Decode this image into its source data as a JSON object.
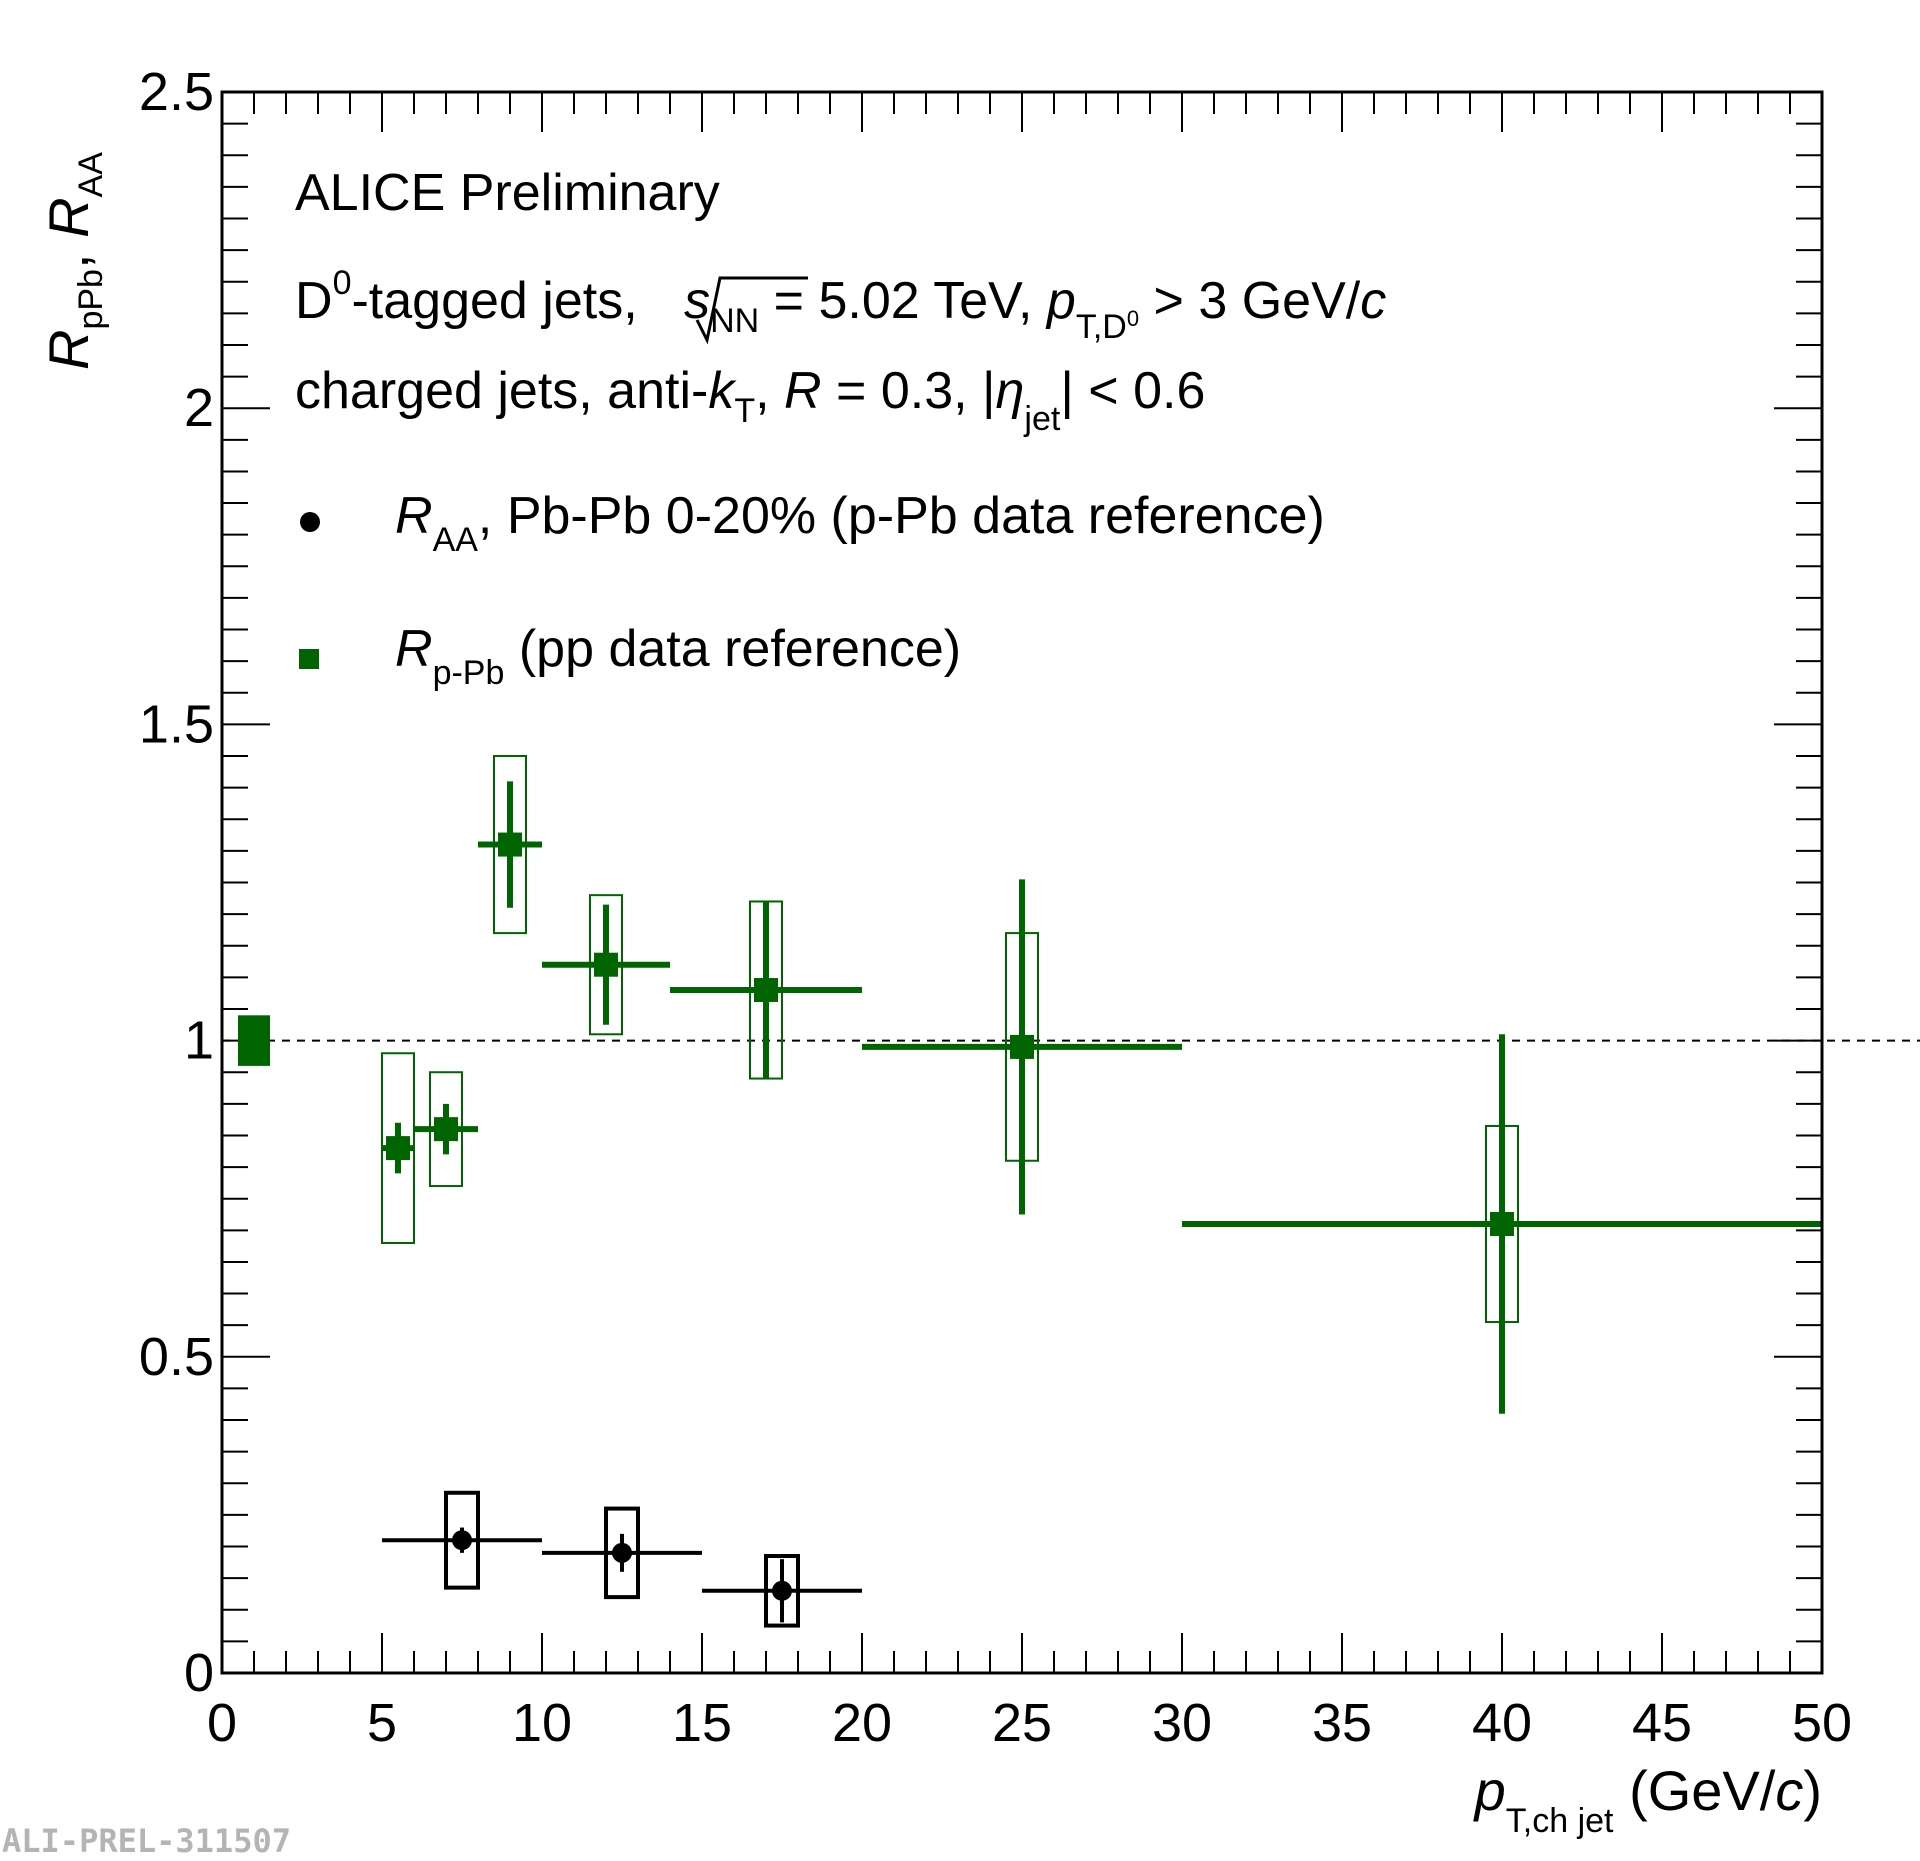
{
  "chart_data": {
    "type": "scatter",
    "title": "",
    "xlim": [
      0,
      50
    ],
    "ylim": [
      0,
      2.5
    ],
    "x_major_ticks": [
      0,
      5,
      10,
      15,
      20,
      25,
      30,
      35,
      40,
      45,
      50
    ],
    "y_major_ticks": [
      0,
      0.5,
      1,
      1.5,
      2,
      2.5
    ],
    "x_tick_labels": [
      "0",
      "5",
      "10",
      "15",
      "20",
      "25",
      "30",
      "35",
      "40",
      "45",
      "50"
    ],
    "y_tick_labels": [
      "0",
      "0.5",
      "1",
      "1.5",
      "2",
      "2.5"
    ],
    "reference_line": 1.0,
    "global_uncertainty": {
      "x": 1.0,
      "y": 1.0,
      "dx": 0.5,
      "dy": 0.04,
      "color": "#006400"
    },
    "xlabel": {
      "main": "p",
      "sub": "T,ch jet",
      "suffix": " (GeV/",
      "italic": "c",
      "close": ")"
    },
    "ylabel": {
      "r1": "R",
      "s1": "pPb",
      "sep": ", ",
      "r2": "R",
      "s2": "AA"
    },
    "annotations": {
      "experiment": "ALICE Preliminary",
      "line1": {
        "a": "D",
        "a_sup": "0",
        "b": "-tagged jets, ",
        "s": "s",
        "s_sub": "NN",
        "c": " = 5.02 TeV, ",
        "p": "p",
        "p_sub": "T,D",
        "p_sup": "0",
        "d": " > 3 GeV/",
        "c_it": "c"
      },
      "line2": {
        "a": "charged jets, anti-",
        "k": "k",
        "k_sub": "T",
        "b": ", ",
        "R": "R",
        "c": " = 0.3, |",
        "eta": "η",
        "eta_sub": "jet",
        "d": "| < 0.6"
      }
    },
    "legend_position": "top-left",
    "series": [
      {
        "name": "R_AA, Pb-Pb 0-20% (p-Pb data reference)",
        "legend": {
          "r": "R",
          "sub": "AA",
          "rest": ", Pb-Pb 0-20% (p-Pb data reference)"
        },
        "marker": "circle",
        "color": "#000000",
        "points": [
          {
            "x": 7.5,
            "xlo": 5,
            "xhi": 10,
            "y": 0.21,
            "stat": 0.02,
            "syst": 0.075,
            "bw": 0.5
          },
          {
            "x": 12.5,
            "xlo": 10,
            "xhi": 15,
            "y": 0.19,
            "stat": 0.03,
            "syst": 0.07,
            "bw": 0.5
          },
          {
            "x": 17.5,
            "xlo": 15,
            "xhi": 20,
            "y": 0.13,
            "stat": 0.05,
            "syst": 0.055,
            "bw": 0.5
          }
        ]
      },
      {
        "name": "R_p-Pb (pp data reference)",
        "legend": {
          "r": "R",
          "sub": "p-Pb",
          "rest": " (pp data reference)"
        },
        "marker": "square",
        "color": "#006400",
        "points": [
          {
            "x": 5.5,
            "xlo": 5,
            "xhi": 6,
            "y": 0.83,
            "stat": 0.04,
            "syst": 0.15,
            "bw": 0.5
          },
          {
            "x": 7.0,
            "xlo": 6,
            "xhi": 8,
            "y": 0.86,
            "stat": 0.04,
            "syst": 0.09,
            "bw": 0.5
          },
          {
            "x": 9.0,
            "xlo": 8,
            "xhi": 10,
            "y": 1.31,
            "stat": 0.1,
            "syst": 0.14,
            "bw": 0.5
          },
          {
            "x": 12.0,
            "xlo": 10,
            "xhi": 14,
            "y": 1.12,
            "stat": 0.095,
            "syst": 0.11,
            "bw": 0.5
          },
          {
            "x": 17.0,
            "xlo": 14,
            "xhi": 20,
            "y": 1.08,
            "stat": 0.14,
            "syst": 0.14,
            "bw": 0.5
          },
          {
            "x": 25.0,
            "xlo": 20,
            "xhi": 30,
            "y": 0.99,
            "stat": 0.265,
            "syst": 0.18,
            "bw": 0.5
          },
          {
            "x": 40.0,
            "xlo": 30,
            "xhi": 50,
            "y": 0.71,
            "stat": 0.3,
            "syst": 0.155,
            "bw": 0.5
          }
        ]
      }
    ]
  },
  "footer_id": "ALI-PREL-311507"
}
